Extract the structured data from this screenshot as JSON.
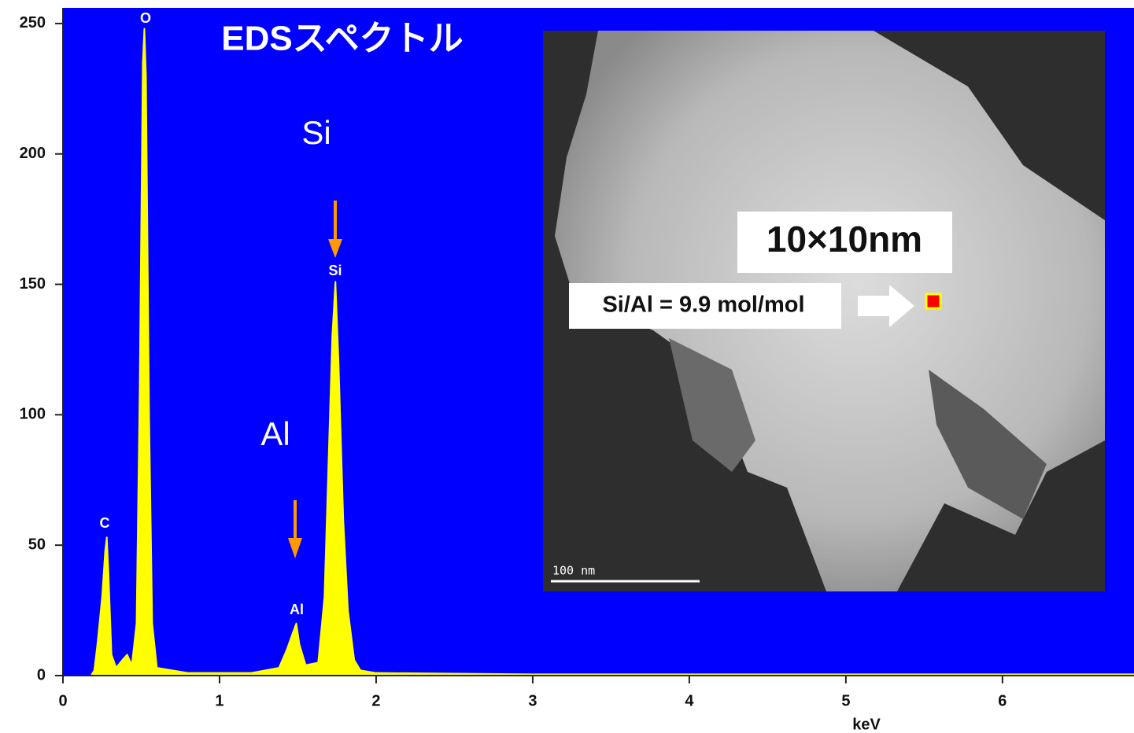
{
  "chart_data": {
    "type": "area",
    "title": "EDSスペクトル",
    "x_label": "keV",
    "color": "#ffff00",
    "background": "#0000ff",
    "grid": false,
    "xlim": [
      0,
      6.84
    ],
    "xticks": [
      0,
      1,
      2,
      3,
      4,
      5,
      6
    ],
    "ylim": [
      0,
      256
    ],
    "yticks": [
      0,
      50,
      100,
      150,
      200,
      250
    ],
    "x": [
      0.18,
      0.2,
      0.22,
      0.25,
      0.27,
      0.28,
      0.29,
      0.31,
      0.34,
      0.38,
      0.41,
      0.44,
      0.47,
      0.49,
      0.51,
      0.52,
      0.53,
      0.55,
      0.57,
      0.6,
      0.8,
      1.0,
      1.2,
      1.38,
      1.43,
      1.46,
      1.49,
      1.51,
      1.55,
      1.63,
      1.67,
      1.7,
      1.72,
      1.74,
      1.76,
      1.79,
      1.82,
      1.86,
      1.9,
      2.0,
      3.0,
      4.0,
      5.0,
      6.0,
      6.84
    ],
    "values": [
      0,
      2,
      12,
      30,
      48,
      53,
      40,
      8,
      3,
      6,
      8,
      4,
      20,
      110,
      235,
      248,
      230,
      100,
      20,
      3,
      1,
      1,
      1,
      3,
      10,
      15,
      20,
      12,
      4,
      5,
      30,
      90,
      130,
      151,
      120,
      60,
      25,
      6,
      2,
      1,
      0.5,
      0.5,
      0.5,
      0.5,
      0.5
    ],
    "peak_labels": [
      "C",
      "O",
      "Al",
      "Si"
    ],
    "element_labels": [
      "Si",
      "Al"
    ],
    "inset": {
      "area_label": "10×10nm",
      "ratio_label": "Si/Al = 9.9 mol/mol",
      "scale_label": "100 nm"
    }
  }
}
